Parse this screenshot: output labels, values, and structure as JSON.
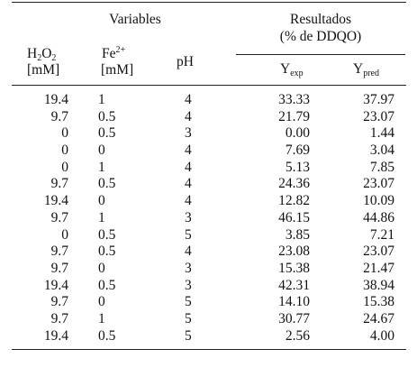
{
  "header": {
    "variables": "Variables",
    "resultados_line1": "Resultados",
    "resultados_line2": "(% de DDQO)",
    "h2o2_base": "H",
    "h2o2_sub1": "2",
    "h2o2_mid": "O",
    "h2o2_sub2": "2",
    "h2o2_unit": "[mM]",
    "fe_base": "Fe",
    "fe_sup": "2+",
    "fe_unit": "[mM]",
    "ph": "pH",
    "yexp_base": "Y",
    "yexp_sub": "exp",
    "ypred_base": "Y",
    "ypred_sub": "pred"
  },
  "rows": [
    {
      "h2o2": "19.4",
      "fe": "1",
      "ph": "4",
      "yexp": "33.33",
      "ypred": "37.97"
    },
    {
      "h2o2": "9.7",
      "fe": "0.5",
      "ph": "4",
      "yexp": "21.79",
      "ypred": "23.07"
    },
    {
      "h2o2": "0",
      "fe": "0.5",
      "ph": "3",
      "yexp": "0.00",
      "ypred": "1.44"
    },
    {
      "h2o2": "0",
      "fe": "0",
      "ph": "4",
      "yexp": "7.69",
      "ypred": "3.04"
    },
    {
      "h2o2": "0",
      "fe": "1",
      "ph": "4",
      "yexp": "5.13",
      "ypred": "7.85"
    },
    {
      "h2o2": "9.7",
      "fe": "0.5",
      "ph": "4",
      "yexp": "24.36",
      "ypred": "23.07"
    },
    {
      "h2o2": "19.4",
      "fe": "0",
      "ph": "4",
      "yexp": "12.82",
      "ypred": "10.09"
    },
    {
      "h2o2": "9.7",
      "fe": "1",
      "ph": "3",
      "yexp": "46.15",
      "ypred": "44.86"
    },
    {
      "h2o2": "0",
      "fe": "0.5",
      "ph": "5",
      "yexp": "3.85",
      "ypred": "7.21"
    },
    {
      "h2o2": "9.7",
      "fe": "0.5",
      "ph": "4",
      "yexp": "23.08",
      "ypred": "23.07"
    },
    {
      "h2o2": "9.7",
      "fe": "0",
      "ph": "3",
      "yexp": "15.38",
      "ypred": "21.47"
    },
    {
      "h2o2": "19.4",
      "fe": "0.5",
      "ph": "3",
      "yexp": "42.31",
      "ypred": "38.94"
    },
    {
      "h2o2": "9.7",
      "fe": "0",
      "ph": "5",
      "yexp": "14.10",
      "ypred": "15.38"
    },
    {
      "h2o2": "9.7",
      "fe": "1",
      "ph": "5",
      "yexp": "30.77",
      "ypred": "24.67"
    },
    {
      "h2o2": "19.4",
      "fe": "0.5",
      "ph": "5",
      "yexp": "2.56",
      "ypred": "4.00"
    }
  ]
}
